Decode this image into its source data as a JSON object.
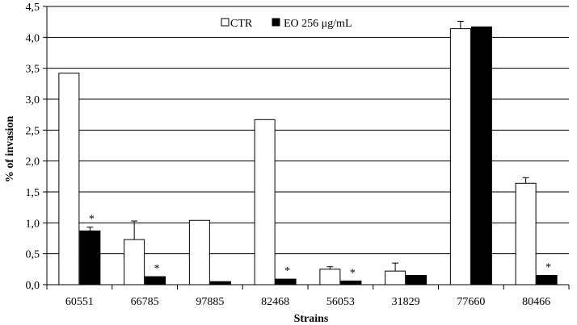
{
  "chart_data": {
    "type": "bar",
    "xlabel": "Strains",
    "ylabel": "% of invasion",
    "ylim": [
      0,
      4.5
    ],
    "ytick_step": 0.5,
    "y_ticks": [
      "0,0",
      "0,5",
      "1,0",
      "1,5",
      "2,0",
      "2,5",
      "3,0",
      "3,5",
      "4,0",
      "4,5"
    ],
    "grid": "horizontal",
    "legend_position": "top-center",
    "categories": [
      "60551",
      "66785",
      "97885",
      "82468",
      "56053",
      "31829",
      "77660",
      "80466"
    ],
    "series": [
      {
        "name": "CTR",
        "color": "#ffffff",
        "values": [
          3.42,
          0.73,
          1.04,
          2.67,
          0.25,
          0.22,
          4.14,
          1.64
        ],
        "errors": [
          0,
          0.3,
          0,
          0,
          0.04,
          0.13,
          0.12,
          0.09
        ]
      },
      {
        "name": "EO 256 μg/mL",
        "color": "#000000",
        "values": [
          0.87,
          0.13,
          0.05,
          0.09,
          0.06,
          0.15,
          4.17,
          0.15
        ],
        "errors": [
          0.06,
          0,
          0,
          0,
          0,
          0,
          0,
          0
        ],
        "significance": [
          "*",
          "*",
          "",
          "*",
          "*",
          "",
          "",
          "*"
        ]
      }
    ]
  }
}
